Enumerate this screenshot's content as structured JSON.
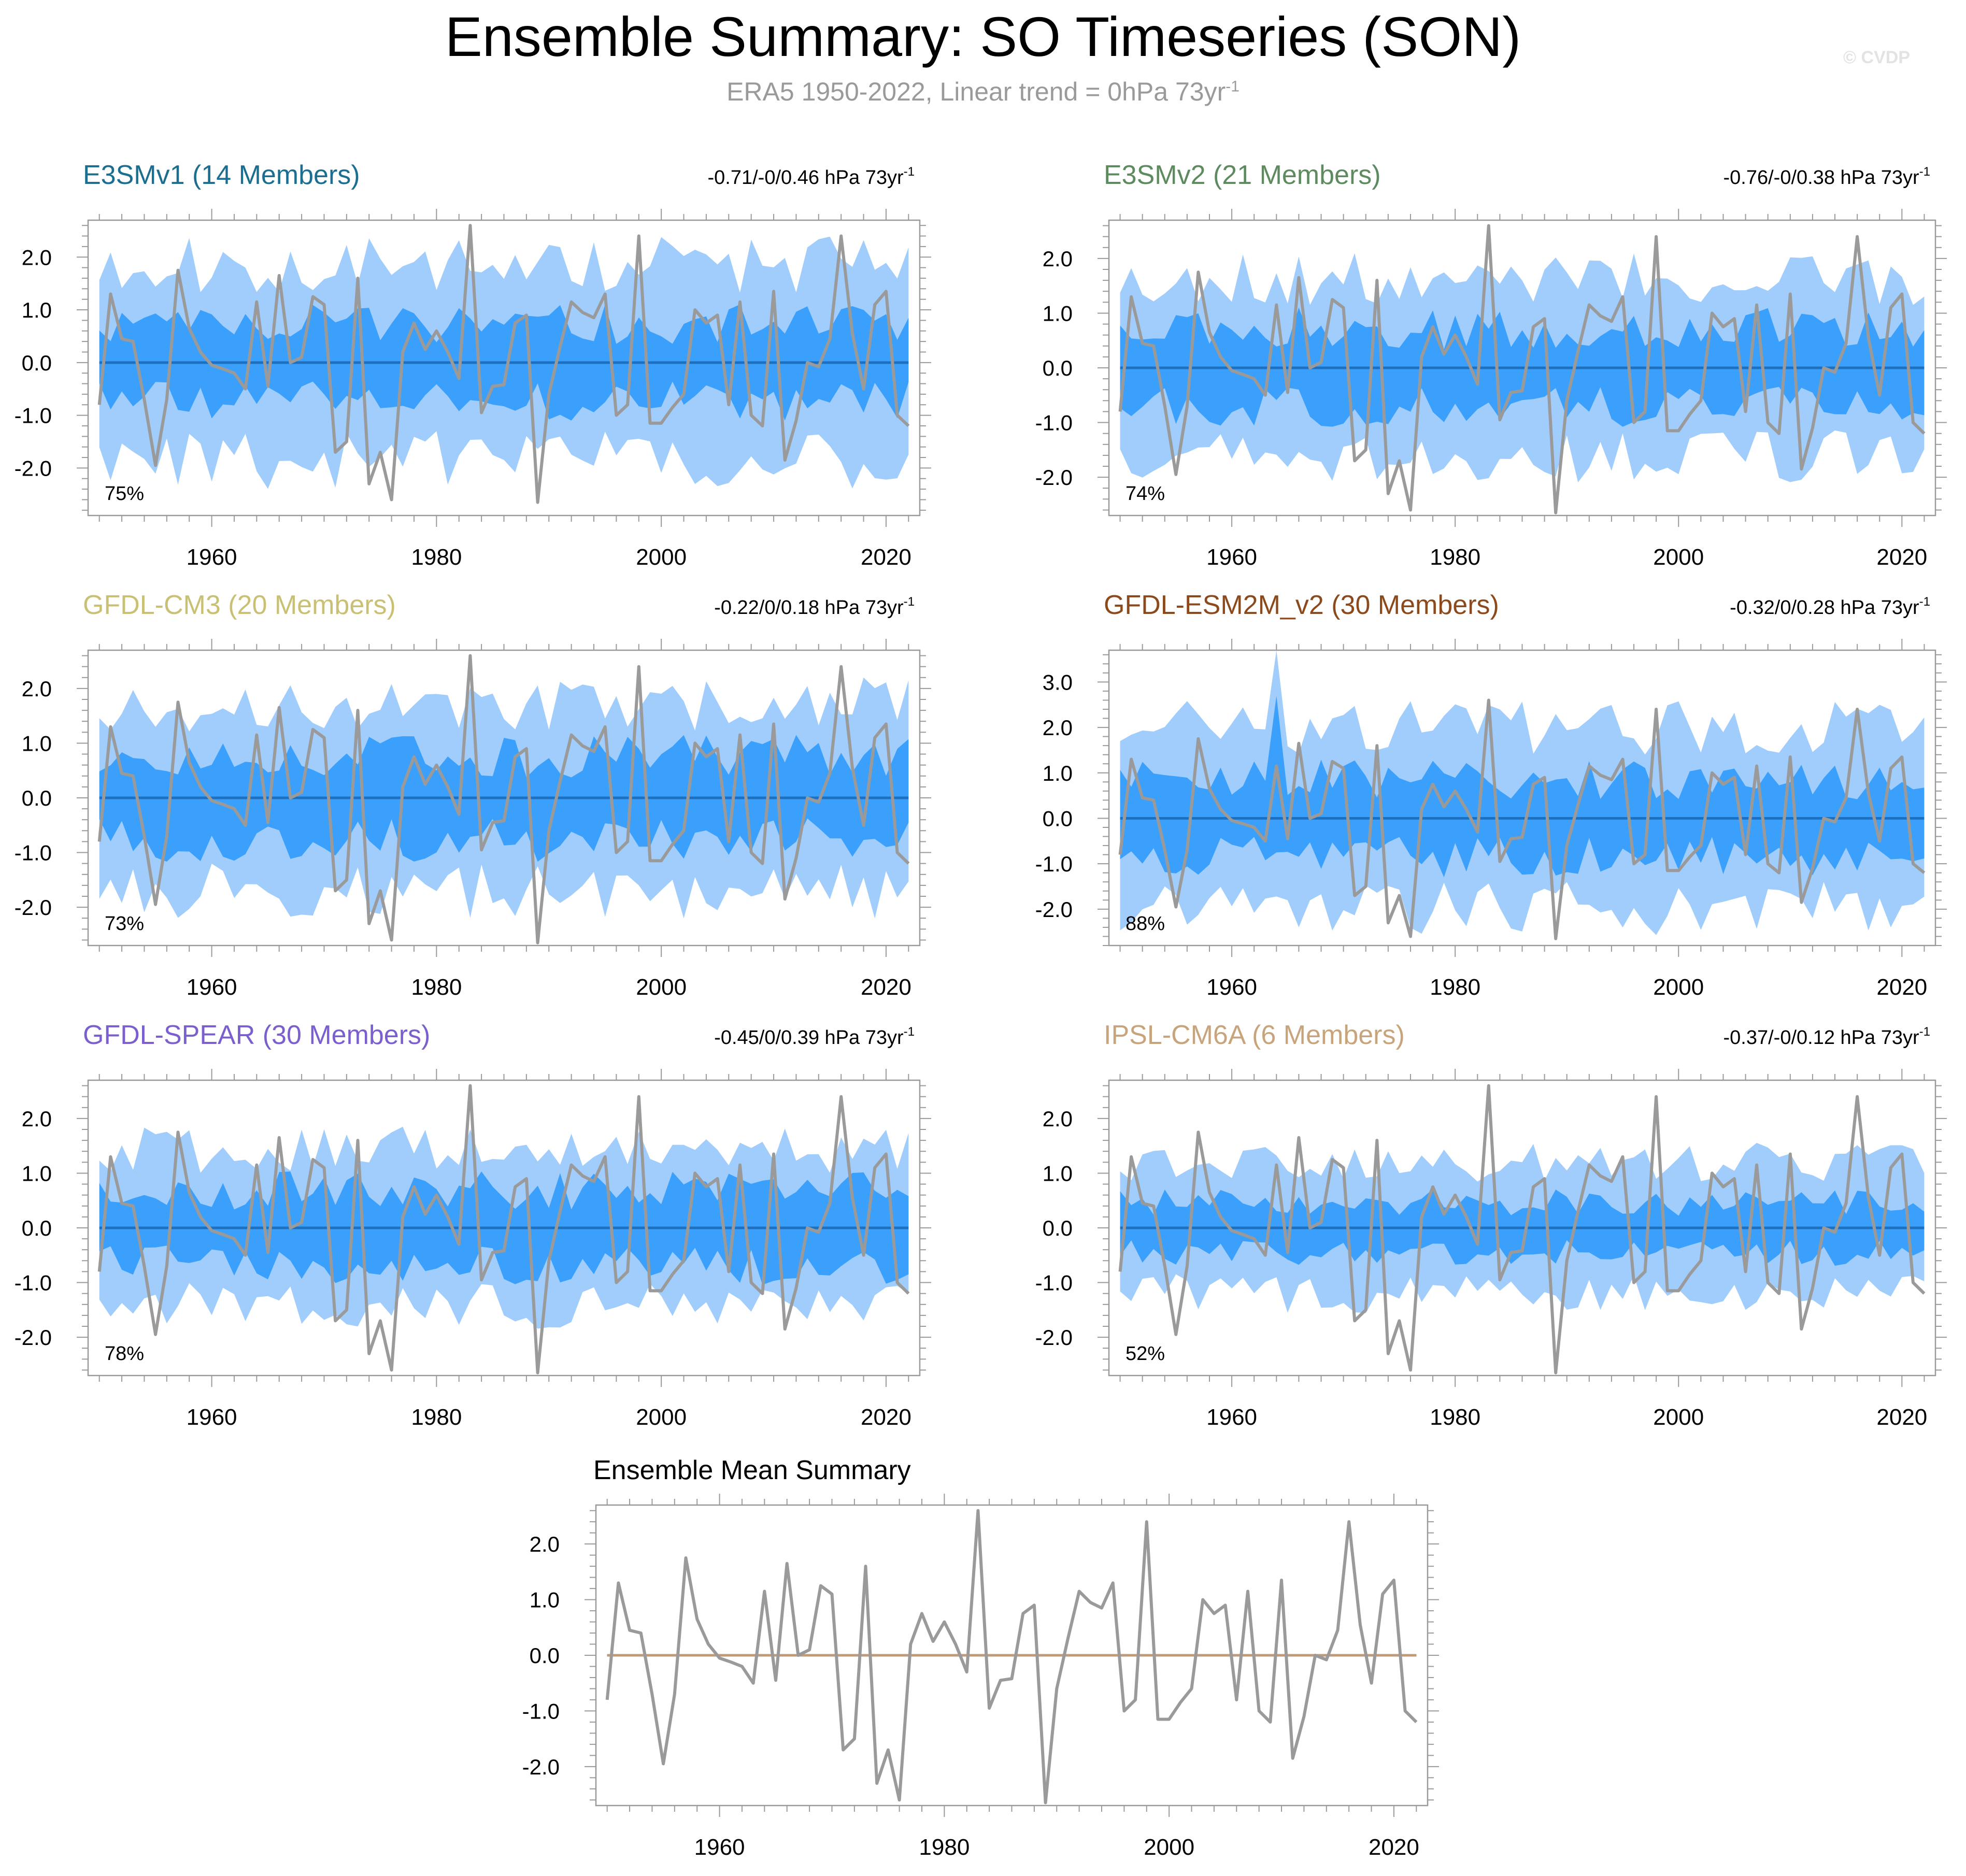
{
  "header": {
    "title": "Ensemble Summary: SO Timeseries (SON)",
    "subtitle_main": "ERA5 1950-2022, Linear trend = 0hPa 73yr",
    "subtitle_sup": "-1",
    "credit": "© CVDP"
  },
  "colors": {
    "outer_band": "#a1cdfc",
    "inner_band": "#3aa0fb",
    "ens_mean_line": "#1f6fbf",
    "obs_line": "#9a9a9a",
    "summary_mean_line": "#bf9b7b"
  },
  "chart_data": [
    {
      "type": "line",
      "title": "E3SMv1 (14 Members)",
      "title_color": "#1b6e8f",
      "trend": "-0.71/-0/0.46 hPa 73yr",
      "trend_sup": "-1",
      "percent": "75%",
      "ylim": [
        -2.9,
        2.7
      ],
      "yticks": [
        -2,
        -1,
        0,
        1,
        2
      ],
      "ytick_labels": [
        "-2.0",
        "-1.0",
        "0.0",
        "1.0",
        "2.0"
      ],
      "xlim": [
        1949,
        2023
      ],
      "xticks": [
        1960,
        1980,
        2000,
        2020
      ],
      "seed": 11,
      "outer_amp": 2.0,
      "inner_amp": 0.85,
      "spikes": []
    },
    {
      "type": "line",
      "title": "E3SMv2 (21 Members)",
      "title_color": "#5d8a5e",
      "trend": "-0.76/-0/0.38 hPa 73yr",
      "trend_sup": "-1",
      "percent": "74%",
      "ylim": [
        -2.7,
        2.7
      ],
      "yticks": [
        -2,
        -1,
        0,
        1,
        2
      ],
      "ytick_labels": [
        "-2.0",
        "-1.0",
        "0.0",
        "1.0",
        "2.0"
      ],
      "xlim": [
        1949,
        2023
      ],
      "xticks": [
        1960,
        1980,
        2000,
        2020
      ],
      "seed": 23,
      "outer_amp": 1.75,
      "inner_amp": 0.85,
      "spikes": []
    },
    {
      "type": "line",
      "title": "GFDL-CM3 (20 Members)",
      "title_color": "#c9c074",
      "trend": "-0.22/0/0.18 hPa 73yr",
      "trend_sup": "-1",
      "percent": "73%",
      "ylim": [
        -2.7,
        2.7
      ],
      "yticks": [
        -2,
        -1,
        0,
        1,
        2
      ],
      "ytick_labels": [
        "-2.0",
        "-1.0",
        "0.0",
        "1.0",
        "2.0"
      ],
      "xlim": [
        1949,
        2023
      ],
      "xticks": [
        1960,
        1980,
        2000,
        2020
      ],
      "seed": 37,
      "outer_amp": 1.85,
      "inner_amp": 0.9,
      "spikes": []
    },
    {
      "type": "line",
      "title": "GFDL-ESM2M_v2 (30 Members)",
      "title_color": "#8c4a1c",
      "trend": "-0.32/0/0.28 hPa 73yr",
      "trend_sup": "-1",
      "percent": "88%",
      "ylim": [
        -2.8,
        3.7
      ],
      "yticks": [
        -2,
        -1,
        0,
        1,
        2,
        3
      ],
      "ytick_labels": [
        "-2.0",
        "-1.0",
        "0.0",
        "1.0",
        "2.0",
        "3.0"
      ],
      "xlim": [
        1949,
        2023
      ],
      "xticks": [
        1960,
        1980,
        2000,
        2020
      ],
      "seed": 51,
      "outer_amp": 2.15,
      "inner_amp": 1.0,
      "spikes": [
        {
          "year": 1964,
          "outer": 3.7,
          "inner": 2.7
        }
      ]
    },
    {
      "type": "line",
      "title": "GFDL-SPEAR (30 Members)",
      "title_color": "#7b5fcf",
      "trend": "-0.45/0/0.39 hPa 73yr",
      "trend_sup": "-1",
      "percent": "78%",
      "ylim": [
        -2.7,
        2.7
      ],
      "yticks": [
        -2,
        -1,
        0,
        1,
        2
      ],
      "ytick_labels": [
        "-2.0",
        "-1.0",
        "0.0",
        "1.0",
        "2.0"
      ],
      "xlim": [
        1949,
        2023
      ],
      "xticks": [
        1960,
        1980,
        2000,
        2020
      ],
      "seed": 67,
      "outer_amp": 1.55,
      "inner_amp": 0.8,
      "spikes": []
    },
    {
      "type": "line",
      "title": "IPSL-CM6A (6 Members)",
      "title_color": "#c8a47c",
      "trend": "-0.37/-0/0.12 hPa 73yr",
      "trend_sup": "-1",
      "percent": "52%",
      "ylim": [
        -2.7,
        2.7
      ],
      "yticks": [
        -2,
        -1,
        0,
        1,
        2
      ],
      "ytick_labels": [
        "-2.0",
        "-1.0",
        "0.0",
        "1.0",
        "2.0"
      ],
      "xlim": [
        1949,
        2023
      ],
      "xticks": [
        1960,
        1980,
        2000,
        2020
      ],
      "seed": 79,
      "outer_amp": 1.3,
      "inner_amp": 0.55,
      "spikes": []
    },
    {
      "type": "line",
      "title": "Ensemble Mean Summary",
      "title_color": "#000000",
      "summary": true,
      "ylim": [
        -2.7,
        2.7
      ],
      "yticks": [
        -2,
        -1,
        0,
        1,
        2
      ],
      "ytick_labels": [
        "-2.0",
        "-1.0",
        "0.0",
        "1.0",
        "2.0"
      ],
      "xlim": [
        1949,
        2023
      ],
      "xticks": [
        1960,
        1980,
        2000,
        2020
      ],
      "lines": [
        {
          "name": "E3SMv1",
          "color": "#1b6e8f"
        },
        {
          "name": "E3SMv2",
          "color": "#5d8a5e"
        },
        {
          "name": "GFDL-CM3",
          "color": "#c9c074"
        },
        {
          "name": "GFDL-ESM2M_v2",
          "color": "#8c4a1c"
        },
        {
          "name": "GFDL-SPEAR",
          "color": "#7b5fcf"
        },
        {
          "name": "IPSL-CM6A",
          "color": "#c8a47c"
        }
      ]
    }
  ],
  "observed": {
    "name": "ERA5",
    "years": [
      1950,
      1951,
      1952,
      1953,
      1954,
      1955,
      1956,
      1957,
      1958,
      1959,
      1960,
      1961,
      1962,
      1963,
      1964,
      1965,
      1966,
      1967,
      1968,
      1969,
      1970,
      1971,
      1972,
      1973,
      1974,
      1975,
      1976,
      1977,
      1978,
      1979,
      1980,
      1981,
      1982,
      1983,
      1984,
      1985,
      1986,
      1987,
      1988,
      1989,
      1990,
      1991,
      1992,
      1993,
      1994,
      1995,
      1996,
      1997,
      1998,
      1999,
      2000,
      2001,
      2002,
      2003,
      2004,
      2005,
      2006,
      2007,
      2008,
      2009,
      2010,
      2011,
      2012,
      2013,
      2014,
      2015,
      2016,
      2017,
      2018,
      2019,
      2020,
      2021,
      2022
    ],
    "values": [
      -0.8,
      1.3,
      0.45,
      0.4,
      -0.7,
      -1.95,
      -0.7,
      1.75,
      0.65,
      0.2,
      -0.05,
      -0.12,
      -0.2,
      -0.5,
      1.15,
      -0.45,
      1.65,
      0,
      0.1,
      1.25,
      1.1,
      -1.7,
      -1.5,
      1.6,
      -2.3,
      -1.7,
      -2.6,
      0.2,
      0.75,
      0.25,
      0.6,
      0.2,
      -0.3,
      2.6,
      -0.95,
      -0.45,
      -0.42,
      0.75,
      0.9,
      -2.65,
      -0.6,
      0.3,
      1.15,
      0.95,
      0.85,
      1.3,
      -1.0,
      -0.8,
      2.4,
      -1.15,
      -1.15,
      -0.85,
      -0.6,
      1.0,
      0.75,
      0.9,
      -0.8,
      1.15,
      -1.0,
      -1.2,
      1.35,
      -1.85,
      -1.1,
      0,
      -0.08,
      0.45,
      2.4,
      0.55,
      -0.5,
      1.1,
      1.35,
      -1.0,
      -1.2
    ]
  }
}
